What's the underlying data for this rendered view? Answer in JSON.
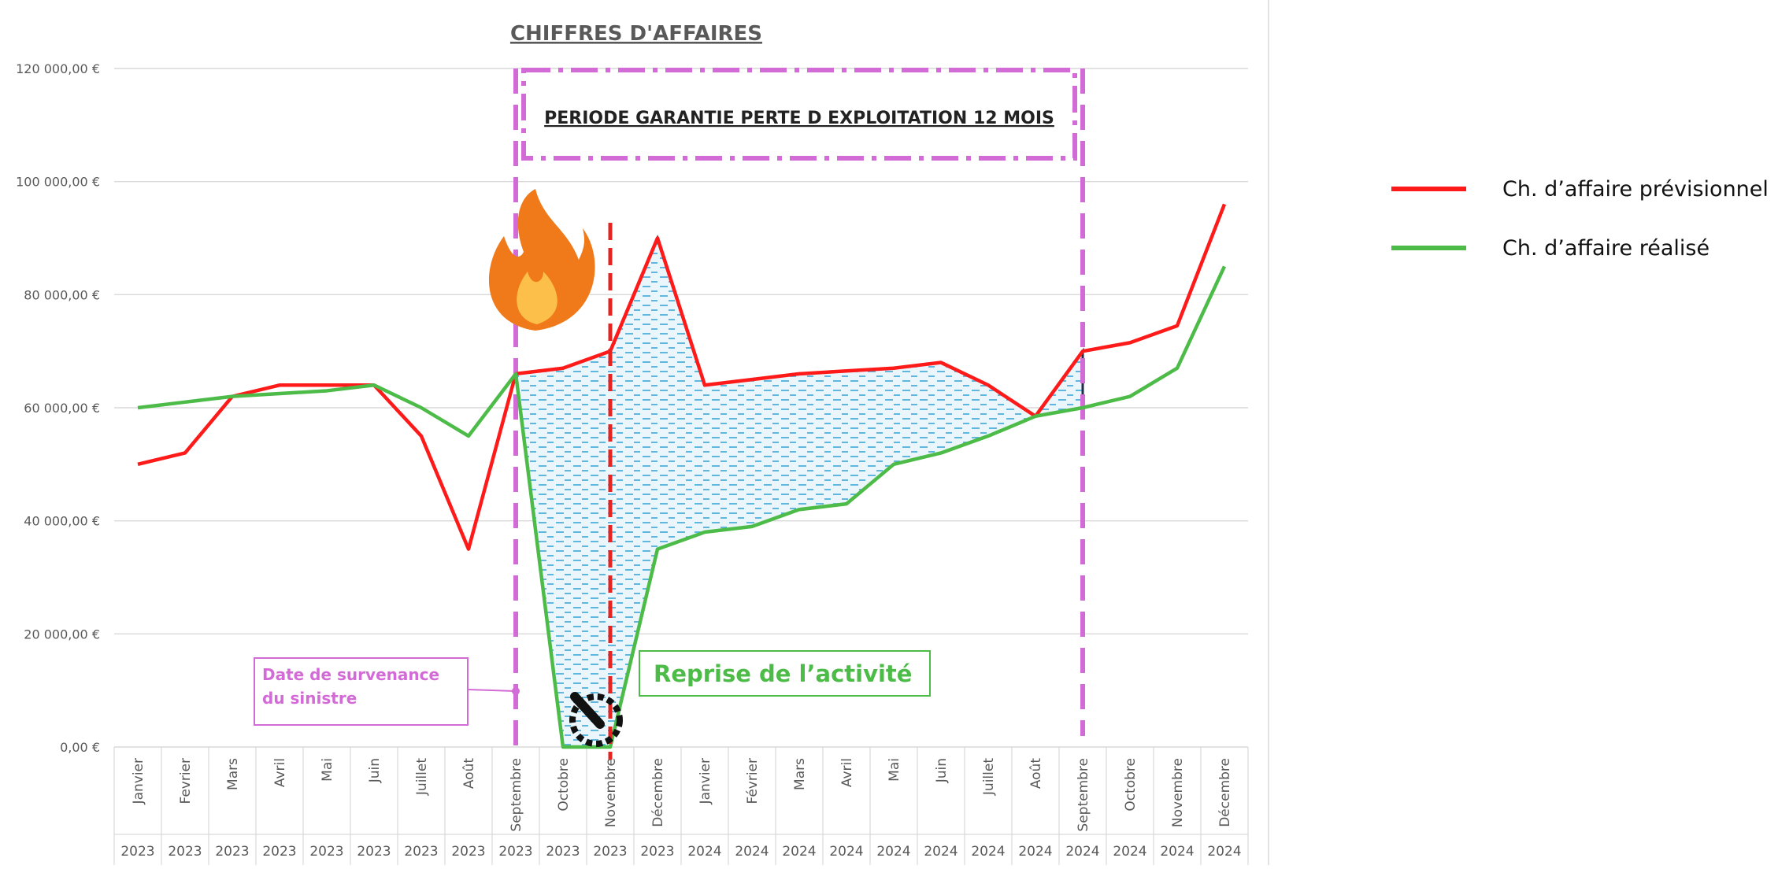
{
  "chart_data": {
    "type": "line",
    "title": "CHIFFRES D'AFFAIRES",
    "categories": [
      "Janvier",
      "Fevrier",
      "Mars",
      "Avril",
      "Mai",
      "Juin",
      "Juillet",
      "Août",
      "Septembre",
      "Octobre",
      "Novembre",
      "Décembre",
      "Janvier",
      "Février",
      "Mars",
      "Avril",
      "Mai",
      "Juin",
      "Juillet",
      "Août",
      "Septembre",
      "Octobre",
      "Novembre",
      "Décembre"
    ],
    "years": [
      "2023",
      "2023",
      "2023",
      "2023",
      "2023",
      "2023",
      "2023",
      "2023",
      "2023",
      "2023",
      "2023",
      "2023",
      "2024",
      "2024",
      "2024",
      "2024",
      "2024",
      "2024",
      "2024",
      "2024",
      "2024",
      "2024",
      "2024",
      "2024"
    ],
    "series": [
      {
        "name": "Ch. d’affaire prévisionnel",
        "color": "#ff1a1a",
        "values": [
          50000,
          52000,
          62000,
          64000,
          64000,
          64000,
          55000,
          35000,
          66000,
          67000,
          70000,
          90000,
          64000,
          65000,
          66000,
          66500,
          67000,
          68000,
          64000,
          58500,
          70000,
          71500,
          74500,
          96000
        ]
      },
      {
        "name": "Ch. d’affaire réalisé",
        "color": "#4cbb47",
        "values": [
          60000,
          61000,
          62000,
          62500,
          63000,
          64000,
          60000,
          55000,
          66000,
          0,
          0,
          35000,
          38000,
          39000,
          42000,
          43000,
          50000,
          52000,
          55000,
          58500,
          60000,
          62000,
          67000,
          85000
        ]
      }
    ],
    "ylim": [
      0,
      120000
    ],
    "yticks": [
      {
        "value": 0,
        "label": "0,00 €"
      },
      {
        "value": 20000,
        "label": "20 000,00 €"
      },
      {
        "value": 40000,
        "label": "40 000,00 €"
      },
      {
        "value": 60000,
        "label": "60 000,00 €"
      },
      {
        "value": 80000,
        "label": "80 000,00 €"
      },
      {
        "value": 100000,
        "label": "100 000,00 €"
      },
      {
        "value": 120000,
        "label": "120 000,00 €"
      }
    ],
    "grid": true,
    "annotations": {
      "period": "PERIODE GARANTIE PERTE D EXPLOITATION 12 MOIS",
      "incident": "Date de survenance du sinistre",
      "restart": "Reprise de l’activité"
    }
  }
}
